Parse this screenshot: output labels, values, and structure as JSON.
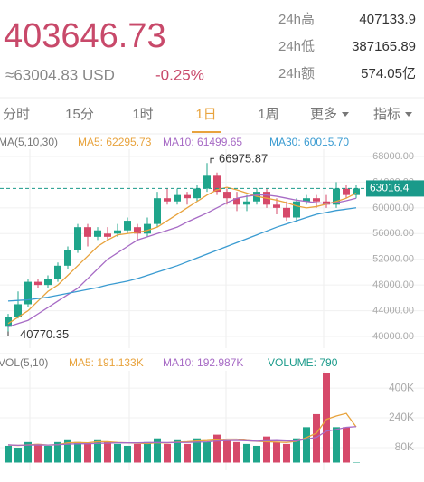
{
  "header": {
    "price": "403646.73",
    "usd": "≈63004.83 USD",
    "change": "-0.25%",
    "stats": [
      {
        "label": "24h高",
        "value": "407133.9"
      },
      {
        "label": "24h低",
        "value": "387165.89"
      },
      {
        "label": "24h额",
        "value": "574.05亿"
      }
    ]
  },
  "tabs": [
    "分时",
    "15分",
    "1时",
    "1日",
    "1周",
    "更多",
    "指标"
  ],
  "active_tab": 3,
  "price_chart": {
    "indicator": "MA(5,10,30)",
    "up_color": "#1fa58b",
    "down_color": "#d6496a",
    "ylim": [
      40000,
      68000
    ],
    "yticks": [
      {
        "value": 68000,
        "label": "68000.00"
      },
      {
        "value": 64000,
        "label": "64000.00"
      },
      {
        "value": 60000,
        "label": "60000.00"
      },
      {
        "value": 56000,
        "label": "56000.00"
      },
      {
        "value": 52000,
        "label": "52000.00"
      },
      {
        "value": 48000,
        "label": "48000.00"
      },
      {
        "value": 44000,
        "label": "44000.00"
      },
      {
        "value": 40000,
        "label": "40000.00"
      }
    ],
    "open": [
      41500,
      43000,
      45000,
      48500,
      48000,
      49000,
      51000,
      53500,
      57000,
      55500,
      56000,
      56000,
      56500,
      57000,
      56000,
      57500,
      61500,
      61000,
      62000,
      61500,
      63000,
      65000,
      62500,
      61500,
      60500,
      61000,
      62500,
      60500,
      60000,
      58500,
      61000,
      61500,
      61000,
      60500,
      63000,
      62000
    ],
    "high": [
      43500,
      47000,
      49000,
      49000,
      49500,
      51500,
      54000,
      57500,
      57500,
      57000,
      57000,
      57500,
      58500,
      57500,
      58500,
      62500,
      63000,
      63000,
      62500,
      63500,
      66975.87,
      65500,
      63000,
      62500,
      62000,
      63000,
      63000,
      61500,
      61000,
      61500,
      62000,
      62000,
      62000,
      64000,
      63500,
      63500
    ],
    "low": [
      40770.35,
      42800,
      44500,
      47500,
      47500,
      48500,
      50500,
      53000,
      54000,
      55000,
      55000,
      55500,
      56000,
      55000,
      55500,
      57000,
      60500,
      60500,
      60500,
      61000,
      62500,
      62000,
      60500,
      59500,
      59500,
      60500,
      60000,
      59000,
      58000,
      58000,
      60500,
      60000,
      60000,
      60000,
      61500,
      61500
    ],
    "close": [
      43000,
      45000,
      48500,
      48000,
      49000,
      51000,
      53500,
      57000,
      55500,
      56500,
      55500,
      56500,
      58000,
      56000,
      57500,
      61500,
      61000,
      62000,
      61500,
      63000,
      65000,
      62500,
      61500,
      60500,
      61000,
      62500,
      60500,
      60000,
      58500,
      61000,
      61500,
      61000,
      60500,
      63000,
      62000,
      63016.4
    ],
    "ma_lines": [
      {
        "name": "MA5: 62295.73",
        "color": "#e8a33d",
        "values": [
          42000,
          43000,
          44000,
          45500,
          47000,
          48000,
          49500,
          51000,
          52500,
          54000,
          55000,
          55800,
          56000,
          56200,
          56500,
          57000,
          58000,
          59000,
          60000,
          61000,
          62000,
          62800,
          63200,
          62800,
          62300,
          61800,
          61500,
          61200,
          60800,
          60300,
          60000,
          60200,
          60600,
          61000,
          61500,
          62295.73
        ]
      },
      {
        "name": "MA10: 61499.65",
        "color": "#a76bc5",
        "values": [
          41500,
          42000,
          42500,
          43500,
          44500,
          45500,
          46500,
          47500,
          49000,
          50500,
          52000,
          53000,
          54000,
          55000,
          55500,
          56000,
          56500,
          57000,
          57800,
          58500,
          59200,
          60000,
          60800,
          61500,
          61800,
          62000,
          62000,
          61800,
          61500,
          61200,
          61000,
          60800,
          60700,
          60800,
          61100,
          61499.65
        ]
      },
      {
        "name": "MA30: 60015.70",
        "color": "#3a9bd1",
        "values": [
          45500,
          45600,
          45700,
          45900,
          46100,
          46400,
          46700,
          47000,
          47300,
          47600,
          48000,
          48300,
          48600,
          49000,
          49500,
          50000,
          50500,
          51000,
          51600,
          52200,
          52800,
          53400,
          54000,
          54600,
          55200,
          55800,
          56400,
          57000,
          57500,
          58000,
          58500,
          59000,
          59300,
          59600,
          59800,
          60015.7
        ]
      }
    ],
    "last_price": 63016.4,
    "high_label": 66975.87,
    "low_label": 40770.35
  },
  "volume_chart": {
    "indicator": "VOL(5,10)",
    "ylim": [
      0,
      483000
    ],
    "yticks": [
      {
        "value": 400000,
        "label": "400K"
      },
      {
        "value": 240000,
        "label": "240K"
      },
      {
        "value": 80000,
        "label": "80K"
      }
    ],
    "volume_label": "VOLUME: 790",
    "values": [
      90000,
      80000,
      110000,
      100000,
      90000,
      110000,
      120000,
      110000,
      100000,
      120000,
      110000,
      100000,
      90000,
      100000,
      110000,
      130000,
      100000,
      120000,
      100000,
      130000,
      110000,
      150000,
      120000,
      110000,
      100000,
      90000,
      140000,
      110000,
      100000,
      130000,
      190000,
      260000,
      480000,
      190000,
      190000,
      790
    ],
    "ma_lines": [
      {
        "name": "MA5: 191.133K",
        "color": "#e8a33d",
        "values": [
          95000,
          92000,
          95000,
          98000,
          94000,
          96000,
          106000,
          108000,
          106000,
          112000,
          112000,
          108000,
          106000,
          104000,
          102000,
          106000,
          106000,
          110000,
          112000,
          116000,
          118000,
          122000,
          126000,
          126000,
          118000,
          114000,
          112000,
          110000,
          108000,
          114000,
          134000,
          158000,
          232000,
          250000,
          264000,
          191133
        ]
      },
      {
        "name": "MA10: 192.987K",
        "color": "#a76bc5",
        "values": [
          95000,
          93000,
          94000,
          95000,
          94000,
          96000,
          99000,
          101000,
          101000,
          103000,
          104000,
          106000,
          106000,
          106000,
          107000,
          108000,
          107000,
          108000,
          108000,
          110000,
          111000,
          116000,
          118000,
          119000,
          117000,
          115000,
          117000,
          118000,
          116000,
          116000,
          126000,
          135000,
          169000,
          178000,
          189000,
          192987
        ]
      }
    ]
  }
}
